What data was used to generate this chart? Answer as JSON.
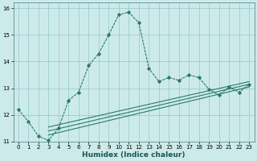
{
  "xlabel": "Humidex (Indice chaleur)",
  "background_color": "#cdeaea",
  "grid_color": "#90c8c8",
  "line_color": "#2a7a6a",
  "xlim": [
    -0.5,
    23.5
  ],
  "ylim": [
    11,
    16.2
  ],
  "xticks": [
    0,
    1,
    2,
    3,
    4,
    5,
    6,
    7,
    8,
    9,
    10,
    11,
    12,
    13,
    14,
    15,
    16,
    17,
    18,
    19,
    20,
    21,
    22,
    23
  ],
  "yticks": [
    11,
    12,
    13,
    14,
    15,
    16
  ],
  "main_x": [
    0,
    1,
    2,
    3,
    4,
    5,
    6,
    7,
    8,
    9,
    10,
    11,
    12,
    13,
    14,
    15,
    16,
    17,
    18,
    19,
    20,
    21,
    22,
    23
  ],
  "main_y": [
    12.2,
    11.75,
    11.2,
    11.05,
    11.5,
    12.55,
    12.85,
    13.85,
    14.3,
    15.0,
    15.75,
    15.85,
    15.45,
    13.75,
    13.25,
    13.4,
    13.3,
    13.5,
    13.4,
    12.95,
    12.75,
    13.05,
    12.85,
    13.15
  ],
  "line1_x": [
    2.5,
    23
  ],
  "line1_y": [
    11.35,
    13.05
  ],
  "line2_x": [
    2.5,
    23
  ],
  "line2_y": [
    11.5,
    13.15
  ],
  "line3_x": [
    2.5,
    23
  ],
  "line3_y": [
    11.65,
    13.25
  ],
  "fan_x_start": 3.0,
  "fan_lines": [
    {
      "x": [
        3.0,
        23
      ],
      "y": [
        11.25,
        13.05
      ]
    },
    {
      "x": [
        3.0,
        23
      ],
      "y": [
        11.4,
        13.15
      ]
    },
    {
      "x": [
        3.0,
        23
      ],
      "y": [
        11.55,
        13.25
      ]
    }
  ]
}
